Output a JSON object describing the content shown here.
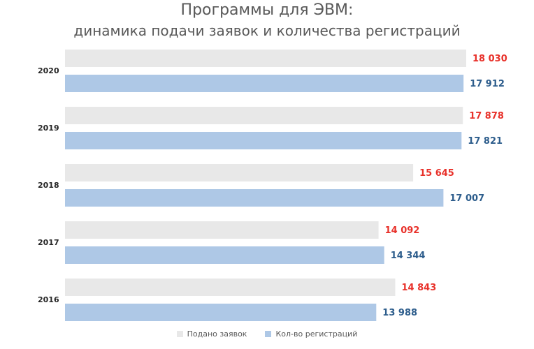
{
  "chart_data": {
    "type": "bar",
    "orientation": "horizontal",
    "title": "Программы для ЭВМ:",
    "subtitle": "динамика подачи заявок и количества регистраций",
    "categories": [
      "2020",
      "2019",
      "2018",
      "2017",
      "2016"
    ],
    "series": [
      {
        "name": "Подано заявок",
        "values": [
          18030,
          17878,
          15645,
          14092,
          14843
        ],
        "labels": [
          "18 030",
          "17 878",
          "15 645",
          "14 092",
          "14 843"
        ],
        "color": "#e8e8e8",
        "label_color": "#e8312a"
      },
      {
        "name": "Кол-во регистраций",
        "values": [
          17912,
          17821,
          17007,
          14344,
          13988
        ],
        "labels": [
          "17 912",
          "17 821",
          "17 007",
          "14 344",
          "13 988"
        ],
        "color": "#aec8e6",
        "label_color": "#2d5d8c"
      }
    ],
    "xlim": [
      0,
      18030
    ],
    "grid": false,
    "legend": "bottom-center"
  }
}
